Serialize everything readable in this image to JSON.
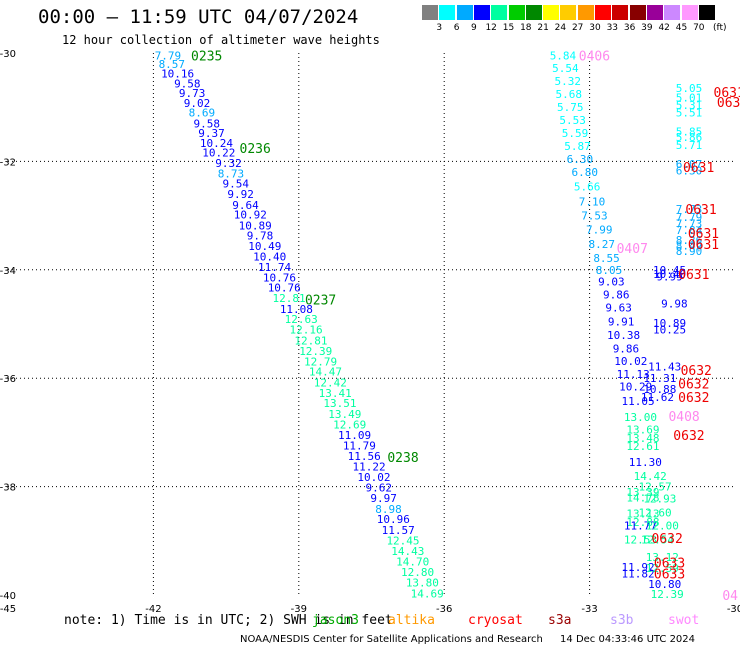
{
  "header": {
    "title": "00:00 – 11:59 UTC 04/07/2024",
    "subtitle": "12 hour collection of altimeter wave heights"
  },
  "legend": {
    "colors": [
      "#808080",
      "#00ffff",
      "#00aaff",
      "#0000ff",
      "#00ffa0",
      "#00cc00",
      "#008800",
      "#ffff00",
      "#ffcc00",
      "#ff9900",
      "#ff0000",
      "#cc0000",
      "#880000",
      "#990099",
      "#cc88ff",
      "#ff99ff",
      "#000000"
    ],
    "labels": [
      "3",
      "6",
      "9",
      "12",
      "15",
      "18",
      "21",
      "24",
      "27",
      "30",
      "33",
      "36",
      "39",
      "42",
      "45",
      "70"
    ],
    "unit": "(ft)"
  },
  "note": "note: 1) Time is in UTC; 2) SWH is in feet",
  "satellites": [
    {
      "name": "jason3",
      "color": "#00aa00"
    },
    {
      "name": "altika",
      "color": "#ff9900"
    },
    {
      "name": "cryosat",
      "color": "#ff0000"
    },
    {
      "name": "s3a",
      "color": "#990000"
    },
    {
      "name": "s3b",
      "color": "#bb99ff"
    },
    {
      "name": "swot",
      "color": "#ff88ff"
    }
  ],
  "footer": "NOAA/NESDIS Center for Satellite Applications and Research",
  "footer_time": "14 Dec 04:33:46 UTC 2024",
  "chart_data": {
    "type": "scatter",
    "xlim": [
      -45,
      -30
    ],
    "ylim": [
      -40,
      -30
    ],
    "xticks": [
      "-45",
      "-42",
      "-39",
      "-36",
      "-33",
      "-30"
    ],
    "yticks": [
      "-30",
      "-32",
      "-34",
      "-36",
      "-38",
      "-40"
    ],
    "grid": true,
    "tracks": [
      {
        "satellite": "jason3",
        "points": [
          {
            "lon": -41.7,
            "lat": -30.05,
            "v": "7.79"
          },
          {
            "lon": -41.62,
            "lat": -30.2,
            "v": "8.57"
          },
          {
            "lon": -41.5,
            "lat": -30.38,
            "v": "10.16"
          },
          {
            "lon": -41.3,
            "lat": -30.56,
            "v": "9.58"
          },
          {
            "lon": -41.2,
            "lat": -30.74,
            "v": "9.73"
          },
          {
            "lon": -41.1,
            "lat": -30.92,
            "v": "9.02"
          },
          {
            "lon": -41.0,
            "lat": -31.1,
            "v": "8.69"
          },
          {
            "lon": -40.9,
            "lat": -31.3,
            "v": "9.58"
          },
          {
            "lon": -40.8,
            "lat": -31.48,
            "v": "9.37"
          },
          {
            "lon": -40.7,
            "lat": -31.66,
            "v": "10.24"
          },
          {
            "lon": -40.65,
            "lat": -31.84,
            "v": "10.22"
          },
          {
            "lon": -40.45,
            "lat": -32.03,
            "v": "9.32"
          },
          {
            "lon": -40.4,
            "lat": -32.22,
            "v": "8.73"
          },
          {
            "lon": -40.3,
            "lat": -32.41,
            "v": "9.54"
          },
          {
            "lon": -40.2,
            "lat": -32.6,
            "v": "9.92"
          },
          {
            "lon": -40.1,
            "lat": -32.8,
            "v": "9.64"
          },
          {
            "lon": -40.0,
            "lat": -32.98,
            "v": "10.92"
          },
          {
            "lon": -39.9,
            "lat": -33.18,
            "v": "10.89"
          },
          {
            "lon": -39.8,
            "lat": -33.37,
            "v": "9.78"
          },
          {
            "lon": -39.7,
            "lat": -33.56,
            "v": "10.49"
          },
          {
            "lon": -39.6,
            "lat": -33.75,
            "v": "10.40"
          },
          {
            "lon": -39.5,
            "lat": -33.95,
            "v": "11.74"
          },
          {
            "lon": -39.4,
            "lat": -34.14,
            "v": "10.76"
          },
          {
            "lon": -39.3,
            "lat": -34.33,
            "v": "10.76"
          },
          {
            "lon": -39.2,
            "lat": -34.52,
            "v": "12.81"
          },
          {
            "lon": -39.05,
            "lat": -34.72,
            "v": "11.08"
          },
          {
            "lon": -38.95,
            "lat": -34.91,
            "v": "12.63"
          },
          {
            "lon": -38.85,
            "lat": -35.1,
            "v": "12.16"
          },
          {
            "lon": -38.75,
            "lat": -35.3,
            "v": "12.81"
          },
          {
            "lon": -38.65,
            "lat": -35.5,
            "v": "12.39"
          },
          {
            "lon": -38.55,
            "lat": -35.69,
            "v": "12.79"
          },
          {
            "lon": -38.45,
            "lat": -35.88,
            "v": "14.47"
          },
          {
            "lon": -38.35,
            "lat": -36.08,
            "v": "12.42"
          },
          {
            "lon": -38.25,
            "lat": -36.27,
            "v": "13.41"
          },
          {
            "lon": -38.15,
            "lat": -36.46,
            "v": "13.51"
          },
          {
            "lon": -38.05,
            "lat": -36.66,
            "v": "13.49"
          },
          {
            "lon": -37.95,
            "lat": -36.85,
            "v": "12.69"
          },
          {
            "lon": -37.85,
            "lat": -37.05,
            "v": "11.09"
          },
          {
            "lon": -37.75,
            "lat": -37.24,
            "v": "11.79"
          },
          {
            "lon": -37.65,
            "lat": -37.44,
            "v": "11.56"
          },
          {
            "lon": -37.55,
            "lat": -37.63,
            "v": "11.22"
          },
          {
            "lon": -37.45,
            "lat": -37.82,
            "v": "10.02"
          },
          {
            "lon": -37.35,
            "lat": -38.02,
            "v": "9.62"
          },
          {
            "lon": -37.25,
            "lat": -38.21,
            "v": "9.97"
          },
          {
            "lon": -37.15,
            "lat": -38.41,
            "v": "8.98"
          },
          {
            "lon": -37.05,
            "lat": -38.6,
            "v": "10.96"
          },
          {
            "lon": -36.95,
            "lat": -38.8,
            "v": "11.57"
          },
          {
            "lon": -36.85,
            "lat": -38.99,
            "v": "12.45"
          },
          {
            "lon": -36.75,
            "lat": -39.19,
            "v": "14.43"
          },
          {
            "lon": -36.65,
            "lat": -39.38,
            "v": "14.70"
          },
          {
            "lon": -36.55,
            "lat": -39.58,
            "v": "12.80"
          },
          {
            "lon": -36.45,
            "lat": -39.77,
            "v": "13.80"
          },
          {
            "lon": -36.35,
            "lat": -39.97,
            "v": "14.69"
          }
        ],
        "times": [
          {
            "lon": -40.9,
            "lat": -30.05,
            "t": "0235"
          },
          {
            "lon": -39.9,
            "lat": -31.75,
            "t": "0236"
          },
          {
            "lon": -38.55,
            "lat": -34.55,
            "t": "0237"
          },
          {
            "lon": -36.85,
            "lat": -37.45,
            "t": "0238"
          }
        ]
      },
      {
        "satellite": "swot",
        "points": [
          {
            "lon": -33.55,
            "lat": -30.05,
            "v": "5.84"
          },
          {
            "lon": -33.5,
            "lat": -30.28,
            "v": "5.54"
          },
          {
            "lon": -33.45,
            "lat": -30.52,
            "v": "5.32"
          },
          {
            "lon": -33.43,
            "lat": -30.76,
            "v": "5.68"
          },
          {
            "lon": -33.4,
            "lat": -31.0,
            "v": "5.75"
          },
          {
            "lon": -33.35,
            "lat": -31.24,
            "v": "5.53"
          },
          {
            "lon": -33.3,
            "lat": -31.48,
            "v": "5.59"
          },
          {
            "lon": -33.25,
            "lat": -31.72,
            "v": "5.87"
          },
          {
            "lon": -33.2,
            "lat": -31.96,
            "v": "6.30"
          },
          {
            "lon": -33.1,
            "lat": -32.2,
            "v": "6.80"
          },
          {
            "lon": -33.05,
            "lat": -32.46,
            "v": "5.66"
          },
          {
            "lon": -32.95,
            "lat": -32.74,
            "v": "7.10"
          },
          {
            "lon": -32.9,
            "lat": -33.0,
            "v": "7.53"
          },
          {
            "lon": -32.8,
            "lat": -33.26,
            "v": "7.99"
          },
          {
            "lon": -32.75,
            "lat": -33.52,
            "v": "8.27"
          },
          {
            "lon": -32.65,
            "lat": -33.78,
            "v": "8.55"
          },
          {
            "lon": -32.6,
            "lat": -34.0,
            "v": "8.05"
          },
          {
            "lon": -32.55,
            "lat": -34.22,
            "v": "9.03"
          },
          {
            "lon": -32.45,
            "lat": -34.46,
            "v": "9.86"
          },
          {
            "lon": -32.4,
            "lat": -34.7,
            "v": "9.63"
          },
          {
            "lon": -32.35,
            "lat": -34.95,
            "v": "9.91"
          },
          {
            "lon": -32.3,
            "lat": -35.2,
            "v": "10.38"
          },
          {
            "lon": -32.25,
            "lat": -35.45,
            "v": "9.86"
          },
          {
            "lon": -32.15,
            "lat": -35.68,
            "v": "10.02"
          },
          {
            "lon": -32.1,
            "lat": -35.92,
            "v": "11.13"
          },
          {
            "lon": -32.05,
            "lat": -36.15,
            "v": "10.29"
          },
          {
            "lon": -32.0,
            "lat": -36.42,
            "v": "11.05"
          },
          {
            "lon": -31.95,
            "lat": -36.72,
            "v": "13.00"
          },
          {
            "lon": -31.9,
            "lat": -36.95,
            "v": "13.69"
          },
          {
            "lon": -31.9,
            "lat": -37.1,
            "v": "13.48"
          },
          {
            "lon": -31.9,
            "lat": -37.25,
            "v": "12.61"
          },
          {
            "lon": -31.85,
            "lat": -37.55,
            "v": "11.30"
          },
          {
            "lon": -31.75,
            "lat": -37.8,
            "v": "14.42"
          },
          {
            "lon": -31.65,
            "lat": -38.0,
            "v": "12.57"
          },
          {
            "lon": -31.9,
            "lat": -38.1,
            "v": "13.39"
          },
          {
            "lon": -31.9,
            "lat": -38.2,
            "v": "14.78"
          },
          {
            "lon": -31.55,
            "lat": -38.22,
            "v": "12.93"
          },
          {
            "lon": -31.9,
            "lat": -38.5,
            "v": "13.13"
          },
          {
            "lon": -31.65,
            "lat": -38.48,
            "v": "12.60"
          },
          {
            "lon": -31.9,
            "lat": -38.65,
            "v": "12.88"
          },
          {
            "lon": -31.95,
            "lat": -38.72,
            "v": "11.77"
          },
          {
            "lon": -31.5,
            "lat": -38.72,
            "v": "12.00"
          },
          {
            "lon": -31.95,
            "lat": -38.98,
            "v": "12.53"
          },
          {
            "lon": -31.6,
            "lat": -38.98,
            "v": "12.54"
          },
          {
            "lon": -31.5,
            "lat": -39.3,
            "v": "13.12"
          },
          {
            "lon": -32.0,
            "lat": -39.48,
            "v": "11.92"
          },
          {
            "lon": -32.0,
            "lat": -39.6,
            "v": "11.82"
          },
          {
            "lon": -31.5,
            "lat": -39.5,
            "v": "12.59"
          },
          {
            "lon": -31.45,
            "lat": -39.8,
            "v": "10.80"
          },
          {
            "lon": -31.4,
            "lat": -39.98,
            "v": "12.39"
          }
        ],
        "times": [
          {
            "lon": -32.9,
            "lat": -30.05,
            "t": "0406"
          },
          {
            "lon": -32.12,
            "lat": -33.6,
            "t": "0407"
          },
          {
            "lon": -31.05,
            "lat": -36.7,
            "t": "0408"
          },
          {
            "lon": -30.1,
            "lat": -40.0,
            "t": "04"
          }
        ]
      },
      {
        "satellite": "cryosat",
        "points": [
          {
            "lon": -30.95,
            "lat": -30.65,
            "v": "5.05"
          },
          {
            "lon": -30.95,
            "lat": -30.82,
            "v": "5.01"
          },
          {
            "lon": -30.95,
            "lat": -30.96,
            "v": "5.31"
          },
          {
            "lon": -30.95,
            "lat": -31.1,
            "v": "5.51"
          },
          {
            "lon": -30.95,
            "lat": -31.45,
            "v": "5.85"
          },
          {
            "lon": -30.95,
            "lat": -31.55,
            "v": "5.86"
          },
          {
            "lon": -30.95,
            "lat": -31.7,
            "v": "5.71"
          },
          {
            "lon": -30.95,
            "lat": -32.05,
            "v": "6.07"
          },
          {
            "lon": -30.95,
            "lat": -32.17,
            "v": "6.30"
          },
          {
            "lon": -30.95,
            "lat": -32.88,
            "v": "7.73"
          },
          {
            "lon": -30.95,
            "lat": -33.03,
            "v": "7.79"
          },
          {
            "lon": -30.95,
            "lat": -33.15,
            "v": "7.73"
          },
          {
            "lon": -30.95,
            "lat": -33.27,
            "v": "7.84"
          },
          {
            "lon": -30.95,
            "lat": -33.45,
            "v": "8.26"
          },
          {
            "lon": -30.95,
            "lat": -33.55,
            "v": "8.49"
          },
          {
            "lon": -30.95,
            "lat": -33.65,
            "v": "8.90"
          },
          {
            "lon": -31.35,
            "lat": -34.0,
            "v": "10.45"
          },
          {
            "lon": -31.35,
            "lat": -34.08,
            "v": "10.40"
          },
          {
            "lon": -31.35,
            "lat": -34.12,
            "v": "9.99"
          },
          {
            "lon": -31.25,
            "lat": -34.62,
            "v": "9.98"
          },
          {
            "lon": -31.35,
            "lat": -34.98,
            "v": "10.89"
          },
          {
            "lon": -31.35,
            "lat": -35.1,
            "v": "10.25"
          },
          {
            "lon": -31.45,
            "lat": -35.78,
            "v": "11.43"
          },
          {
            "lon": -31.55,
            "lat": -36.0,
            "v": "11.31"
          },
          {
            "lon": -31.55,
            "lat": -36.2,
            "v": "10.88"
          },
          {
            "lon": -31.6,
            "lat": -36.35,
            "v": "11.62"
          }
        ],
        "times": [
          {
            "lon": -30.12,
            "lat": -30.72,
            "t": "0631"
          },
          {
            "lon": -30.05,
            "lat": -30.9,
            "t": "0631"
          },
          {
            "lon": -30.75,
            "lat": -32.1,
            "t": "0631"
          },
          {
            "lon": -30.7,
            "lat": -32.88,
            "t": "0631"
          },
          {
            "lon": -30.65,
            "lat": -33.32,
            "t": "0631"
          },
          {
            "lon": -30.65,
            "lat": -33.52,
            "t": "0631"
          },
          {
            "lon": -30.85,
            "lat": -34.08,
            "t": "0631"
          },
          {
            "lon": -30.8,
            "lat": -35.85,
            "t": "0632"
          },
          {
            "lon": -30.85,
            "lat": -36.1,
            "t": "0632"
          },
          {
            "lon": -30.85,
            "lat": -36.35,
            "t": "0632"
          },
          {
            "lon": -30.95,
            "lat": -37.05,
            "t": "0632"
          },
          {
            "lon": -31.4,
            "lat": -38.95,
            "t": "0632"
          },
          {
            "lon": -31.35,
            "lat": -39.4,
            "t": "0633"
          },
          {
            "lon": -31.35,
            "lat": -39.6,
            "t": "0633"
          }
        ]
      }
    ]
  }
}
